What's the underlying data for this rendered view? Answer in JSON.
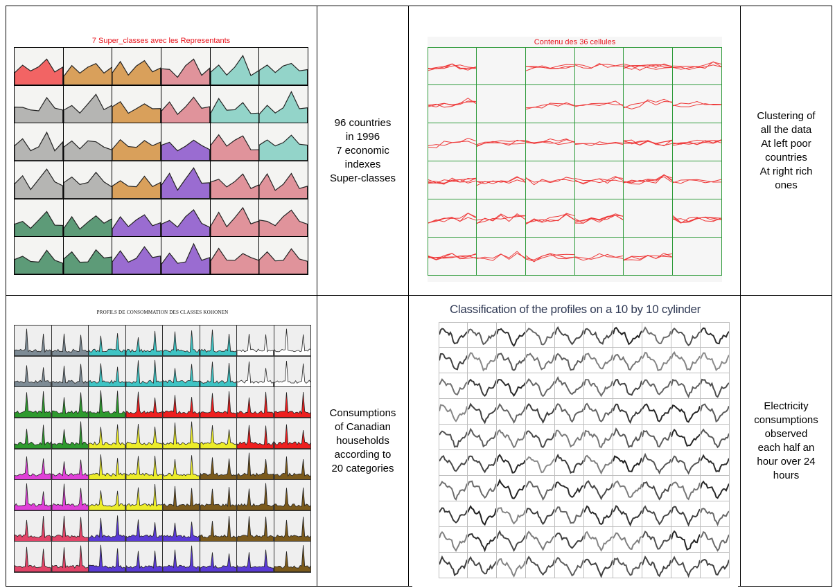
{
  "rows": [
    {
      "left": {
        "title": "7 Super_classes avec les Representants",
        "title_color": "#e8141d",
        "grid_cols": 6,
        "grid_rows": 6,
        "super_class_colors": [
          "#f26464",
          "#d9a05b",
          "#e0939b",
          "#93d4c9",
          "#b5b5b3",
          "#9a6cd1",
          "#5d9b78"
        ],
        "cell_class_map": [
          [
            0,
            1,
            1,
            2,
            3,
            3
          ],
          [
            4,
            4,
            1,
            2,
            3,
            3
          ],
          [
            4,
            4,
            1,
            5,
            2,
            3
          ],
          [
            4,
            4,
            1,
            5,
            2,
            2
          ],
          [
            6,
            6,
            5,
            5,
            2,
            2
          ],
          [
            6,
            6,
            5,
            5,
            2,
            2
          ]
        ]
      },
      "left_desc": [
        "96 countries",
        "in 1996",
        "7 economic",
        "indexes",
        "Super-classes"
      ],
      "right": {
        "title": "Contenu des 36 cellules",
        "title_color": "#e8141d",
        "line_color": "#ee3a3a",
        "border_color": "#2e9a3a",
        "grid_cols": 6,
        "grid_rows": 6,
        "empty_cells": [
          [
            0,
            1
          ],
          [
            1,
            1
          ],
          [
            4,
            4
          ],
          [
            5,
            5
          ]
        ]
      },
      "right_desc": [
        "Clustering of",
        "all the data",
        "At left poor",
        "countries",
        "At right rich",
        "ones"
      ]
    },
    {
      "left": {
        "title": "PROFILS DE CONSOMMATION DES CLASSES KOHONEN",
        "grid_cols": 8,
        "grid_rows": 8,
        "palette": [
          "#7d8b95",
          "#3fc4c4",
          "#ffffff",
          "#2e9a2e",
          "#ee1f1f",
          "#ecec2a",
          "#e040d8",
          "#7b5a1c",
          "#e24468",
          "#5a3bd6"
        ],
        "cell_color_map": [
          [
            0,
            0,
            1,
            1,
            1,
            1,
            2,
            2
          ],
          [
            0,
            0,
            1,
            1,
            1,
            1,
            2,
            2
          ],
          [
            3,
            3,
            3,
            4,
            4,
            4,
            4,
            4
          ],
          [
            3,
            3,
            5,
            5,
            5,
            5,
            4,
            4
          ],
          [
            6,
            6,
            5,
            5,
            5,
            7,
            7,
            7
          ],
          [
            6,
            6,
            5,
            5,
            7,
            7,
            7,
            7
          ],
          [
            8,
            8,
            9,
            9,
            9,
            7,
            7,
            7
          ],
          [
            8,
            8,
            9,
            9,
            9,
            9,
            9,
            7
          ]
        ]
      },
      "left_desc": [
        "Consumptions",
        "of Canadian",
        "households",
        "according to",
        "20 categories"
      ],
      "right": {
        "title": "Classification of the profiles on a 10 by 10 cylinder",
        "title_color": "#303a55",
        "grid_cols": 10,
        "grid_rows": 10
      },
      "right_desc": [
        "Electricity",
        "consumptions",
        "observed",
        "each half an",
        "hour over 24",
        "hours"
      ]
    }
  ]
}
